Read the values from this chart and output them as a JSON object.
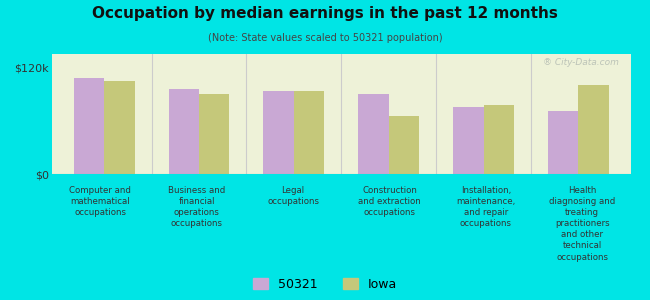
{
  "title": "Occupation by median earnings in the past 12 months",
  "subtitle": "(Note: State values scaled to 50321 population)",
  "background_color": "#00e5e5",
  "plot_bg_color": "#eef2d8",
  "categories": [
    "Computer and\nmathematical\noccupations",
    "Business and\nfinancial\noperations\noccupations",
    "Legal\noccupations",
    "Construction\nand extraction\noccupations",
    "Installation,\nmaintenance,\nand repair\noccupations",
    "Health\ndiagnosing and\ntreating\npractitioners\nand other\ntechnical\noccupations"
  ],
  "values_50321": [
    108000,
    96000,
    93000,
    90000,
    75000,
    71000
  ],
  "values_iowa": [
    105000,
    90000,
    93000,
    65000,
    78000,
    100000
  ],
  "color_50321": "#c9a8d4",
  "color_iowa": "#c5c87a",
  "ylim": [
    0,
    135000
  ],
  "yticks": [
    0,
    120000
  ],
  "ytick_labels": [
    "$0",
    "$120k"
  ],
  "legend_labels": [
    "50321",
    "Iowa"
  ],
  "watermark": "® City-Data.com"
}
